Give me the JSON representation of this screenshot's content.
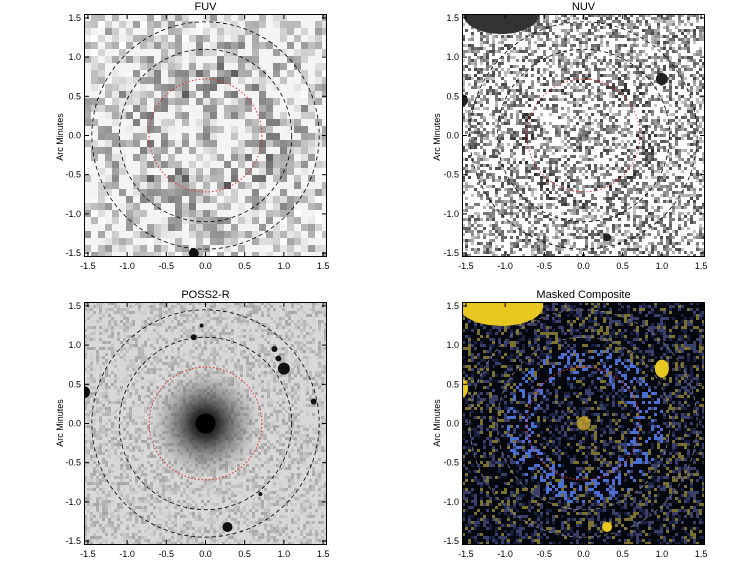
{
  "panels": [
    {
      "title": "FUV",
      "ylabel": "Arc Minutes",
      "style": "fuv"
    },
    {
      "title": "NUV",
      "ylabel": "Arc Minutes",
      "style": "nuv"
    },
    {
      "title": "POSS2-R",
      "ylabel": "Arc Minutes",
      "style": "poss"
    },
    {
      "title": "Masked Composite",
      "ylabel": "Arc Minutes",
      "style": "composite"
    }
  ],
  "axes": {
    "x_ticks": [
      "-1.5",
      "-1.0",
      "-0.5",
      "0.0",
      "0.5",
      "1.0",
      "1.5"
    ],
    "y_ticks": [
      "1.5",
      "1.0",
      "0.5",
      "0.0",
      "-0.5",
      "-1.0",
      "-1.5"
    ],
    "range": [
      -1.55,
      1.55
    ]
  },
  "colors": {
    "dashed_circle": "#000000",
    "red_circle": "#e03030",
    "composite_bg": "#05070f",
    "composite_yellow": "#e8c820",
    "composite_blue": "#4a6fd0"
  }
}
